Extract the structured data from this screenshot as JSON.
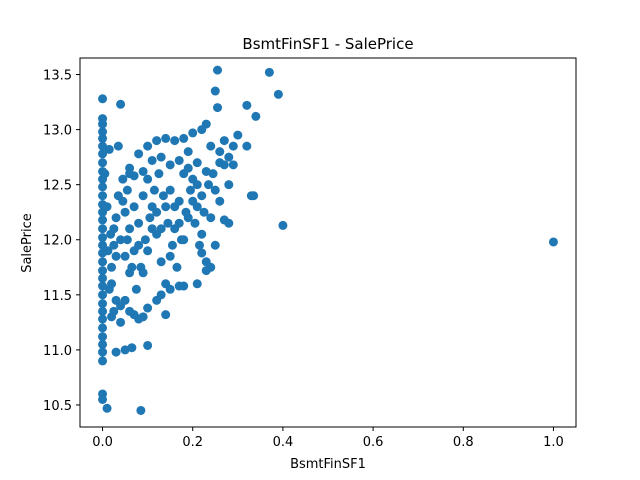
{
  "chart_data": {
    "type": "scatter",
    "title": "BsmtFinSF1 - SalePrice",
    "xlabel": "BsmtFinSF1",
    "ylabel": "SalePrice",
    "xlim": [
      -0.05,
      1.05
    ],
    "ylim": [
      10.3,
      13.65
    ],
    "xticks": [
      0.0,
      0.2,
      0.4,
      0.6,
      0.8,
      1.0
    ],
    "xtick_labels": [
      "0.0",
      "0.2",
      "0.4",
      "0.6",
      "0.8",
      "1.0"
    ],
    "yticks": [
      10.5,
      11.0,
      11.5,
      12.0,
      12.5,
      13.0,
      13.5
    ],
    "ytick_labels": [
      "10.5",
      "11.0",
      "11.5",
      "12.0",
      "12.5",
      "13.0",
      "13.5"
    ],
    "grid": false,
    "marker_color": "#1f77b4",
    "series": [
      {
        "points": [
          [
            0.0,
            13.28
          ],
          [
            0.0,
            13.1
          ],
          [
            0.0,
            13.05
          ],
          [
            0.0,
            12.98
          ],
          [
            0.0,
            12.92
          ],
          [
            0.0,
            12.85
          ],
          [
            0.0,
            12.78
          ],
          [
            0.0,
            12.7
          ],
          [
            0.0,
            12.62
          ],
          [
            0.0,
            12.55
          ],
          [
            0.0,
            12.48
          ],
          [
            0.0,
            12.4
          ],
          [
            0.0,
            12.32
          ],
          [
            0.0,
            12.25
          ],
          [
            0.0,
            12.18
          ],
          [
            0.0,
            12.1
          ],
          [
            0.0,
            12.02
          ],
          [
            0.0,
            11.95
          ],
          [
            0.0,
            11.88
          ],
          [
            0.0,
            11.8
          ],
          [
            0.0,
            11.72
          ],
          [
            0.0,
            11.65
          ],
          [
            0.0,
            11.58
          ],
          [
            0.0,
            11.5
          ],
          [
            0.0,
            11.42
          ],
          [
            0.0,
            11.35
          ],
          [
            0.0,
            11.28
          ],
          [
            0.0,
            11.2
          ],
          [
            0.0,
            11.12
          ],
          [
            0.0,
            11.05
          ],
          [
            0.0,
            10.98
          ],
          [
            0.0,
            10.9
          ],
          [
            0.0,
            10.6
          ],
          [
            0.0,
            10.55
          ],
          [
            0.01,
            10.47
          ],
          [
            0.005,
            12.6
          ],
          [
            0.01,
            12.3
          ],
          [
            0.012,
            11.9
          ],
          [
            0.015,
            12.82
          ],
          [
            0.018,
            12.05
          ],
          [
            0.04,
            13.23
          ],
          [
            0.035,
            12.85
          ],
          [
            0.03,
            10.98
          ],
          [
            0.05,
            11.0
          ],
          [
            0.065,
            11.02
          ],
          [
            0.1,
            11.04
          ],
          [
            0.085,
            10.45
          ],
          [
            0.08,
            12.78
          ],
          [
            0.06,
            12.6
          ],
          [
            0.055,
            12.45
          ],
          [
            0.045,
            12.35
          ],
          [
            0.025,
            12.1
          ],
          [
            0.03,
            11.85
          ],
          [
            0.02,
            11.6
          ],
          [
            0.025,
            11.35
          ],
          [
            0.04,
            11.25
          ],
          [
            0.05,
            11.45
          ],
          [
            0.06,
            11.7
          ],
          [
            0.07,
            11.9
          ],
          [
            0.08,
            12.15
          ],
          [
            0.09,
            12.4
          ],
          [
            0.1,
            12.55
          ],
          [
            0.11,
            12.3
          ],
          [
            0.12,
            12.05
          ],
          [
            0.13,
            11.8
          ],
          [
            0.14,
            11.6
          ],
          [
            0.15,
            11.85
          ],
          [
            0.16,
            12.1
          ],
          [
            0.17,
            12.35
          ],
          [
            0.18,
            12.6
          ],
          [
            0.19,
            12.8
          ],
          [
            0.2,
            12.55
          ],
          [
            0.21,
            12.3
          ],
          [
            0.22,
            12.05
          ],
          [
            0.23,
            11.8
          ],
          [
            0.24,
            12.2
          ],
          [
            0.25,
            12.45
          ],
          [
            0.26,
            12.7
          ],
          [
            0.27,
            12.9
          ],
          [
            0.28,
            12.75
          ],
          [
            0.29,
            12.85
          ],
          [
            0.3,
            12.95
          ],
          [
            0.32,
            12.85
          ],
          [
            0.33,
            12.4
          ],
          [
            0.335,
            12.4
          ],
          [
            0.34,
            13.12
          ],
          [
            0.32,
            13.22
          ],
          [
            0.37,
            13.52
          ],
          [
            0.39,
            13.32
          ],
          [
            0.255,
            13.54
          ],
          [
            0.25,
            13.35
          ],
          [
            0.255,
            13.2
          ],
          [
            0.23,
            13.05
          ],
          [
            0.22,
            13.0
          ],
          [
            0.2,
            12.97
          ],
          [
            0.18,
            12.92
          ],
          [
            0.16,
            12.9
          ],
          [
            0.14,
            12.92
          ],
          [
            0.12,
            12.9
          ],
          [
            0.1,
            12.85
          ],
          [
            0.06,
            12.65
          ],
          [
            0.07,
            12.58
          ],
          [
            0.09,
            12.62
          ],
          [
            0.11,
            12.72
          ],
          [
            0.13,
            12.75
          ],
          [
            0.15,
            12.68
          ],
          [
            0.17,
            12.72
          ],
          [
            0.19,
            12.65
          ],
          [
            0.21,
            12.7
          ],
          [
            0.23,
            12.62
          ],
          [
            0.24,
            12.85
          ],
          [
            0.26,
            12.8
          ],
          [
            0.27,
            12.68
          ],
          [
            0.28,
            12.5
          ],
          [
            0.29,
            12.68
          ],
          [
            0.26,
            12.35
          ],
          [
            0.27,
            12.18
          ],
          [
            0.28,
            12.15
          ],
          [
            0.25,
            11.95
          ],
          [
            0.24,
            11.75
          ],
          [
            0.23,
            11.72
          ],
          [
            0.22,
            11.88
          ],
          [
            0.21,
            11.6
          ],
          [
            0.18,
            11.58
          ],
          [
            0.17,
            11.58
          ],
          [
            0.15,
            11.55
          ],
          [
            0.14,
            11.32
          ],
          [
            0.13,
            11.5
          ],
          [
            0.12,
            11.45
          ],
          [
            0.1,
            11.38
          ],
          [
            0.09,
            11.3
          ],
          [
            0.08,
            11.28
          ],
          [
            0.07,
            11.32
          ],
          [
            0.06,
            11.35
          ],
          [
            0.04,
            11.4
          ],
          [
            0.03,
            11.45
          ],
          [
            0.02,
            11.3
          ],
          [
            0.015,
            11.55
          ],
          [
            0.02,
            11.75
          ],
          [
            0.025,
            11.95
          ],
          [
            0.03,
            12.2
          ],
          [
            0.035,
            12.4
          ],
          [
            0.045,
            12.55
          ],
          [
            0.05,
            12.25
          ],
          [
            0.055,
            12.0
          ],
          [
            0.065,
            11.75
          ],
          [
            0.075,
            11.55
          ],
          [
            0.085,
            11.75
          ],
          [
            0.095,
            12.0
          ],
          [
            0.105,
            12.2
          ],
          [
            0.115,
            12.45
          ],
          [
            0.125,
            12.6
          ],
          [
            0.135,
            12.4
          ],
          [
            0.145,
            12.15
          ],
          [
            0.155,
            11.95
          ],
          [
            0.165,
            11.75
          ],
          [
            0.175,
            12.0
          ],
          [
            0.185,
            12.25
          ],
          [
            0.195,
            12.45
          ],
          [
            0.205,
            12.15
          ],
          [
            0.215,
            11.95
          ],
          [
            0.225,
            12.25
          ],
          [
            0.235,
            12.5
          ],
          [
            0.245,
            12.6
          ],
          [
            0.04,
            12.0
          ],
          [
            0.05,
            11.85
          ],
          [
            0.06,
            12.1
          ],
          [
            0.07,
            12.3
          ],
          [
            0.08,
            11.95
          ],
          [
            0.09,
            11.7
          ],
          [
            0.1,
            11.9
          ],
          [
            0.11,
            12.1
          ],
          [
            0.12,
            12.25
          ],
          [
            0.13,
            12.1
          ],
          [
            0.14,
            12.3
          ],
          [
            0.15,
            12.45
          ],
          [
            0.16,
            12.3
          ],
          [
            0.17,
            12.15
          ],
          [
            0.18,
            12.0
          ],
          [
            0.19,
            12.2
          ],
          [
            0.2,
            12.35
          ],
          [
            0.21,
            12.5
          ],
          [
            0.22,
            12.4
          ],
          [
            0.4,
            12.13
          ],
          [
            1.0,
            11.98
          ]
        ]
      }
    ]
  }
}
